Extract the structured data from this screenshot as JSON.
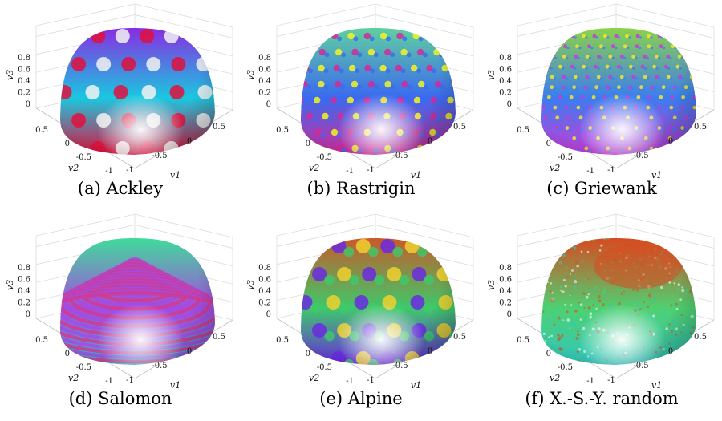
{
  "figure": {
    "panels": [
      {
        "letter": "(a)",
        "name": "Ackley",
        "caption": "(a) Ackley",
        "pattern": "blobs-large",
        "colors": {
          "top": "#8a2be2",
          "mid": "#19c8e0",
          "base": "#e0103c",
          "accent": "#f2f2f2"
        }
      },
      {
        "letter": "(b)",
        "name": "Rastrigin",
        "caption": "(b) Rastrigin",
        "pattern": "dots-medium",
        "colors": {
          "top": "#5fd0a0",
          "mid": "#3a6af0",
          "base": "#d22a9a",
          "accent": "#f5f520"
        }
      },
      {
        "letter": "(c)",
        "name": "Griewank",
        "caption": "(c) Griewank",
        "pattern": "dots-fine",
        "colors": {
          "top": "#8bd24a",
          "mid": "#3b7df0",
          "base": "#c83ad8",
          "accent": "#f5e52a"
        }
      },
      {
        "letter": "(d)",
        "name": "Salomon",
        "caption": "(d) Salomon",
        "pattern": "rings",
        "colors": {
          "top": "#3fdc9a",
          "mid": "#a54be0",
          "base": "#2bc0d8",
          "accent": "#d13a8e"
        }
      },
      {
        "letter": "(e)",
        "name": "Alpine",
        "caption": "(e) Alpine",
        "pattern": "blobs-mixed",
        "colors": {
          "top": "#c85a2a",
          "mid": "#3ec96a",
          "base": "#6a2ae0",
          "accent": "#f0d030"
        }
      },
      {
        "letter": "(f)",
        "name": "X.-S.-Y. random",
        "caption": "(f) X.-S.-Y. random",
        "pattern": "noise",
        "colors": {
          "top": "#d84a20",
          "mid": "#4ed070",
          "base": "#30c8c0",
          "accent": "#f0f0f0"
        }
      }
    ],
    "axes": {
      "zlabel": "v3",
      "xlabel": "v1",
      "ylabel": "v2",
      "zticks": [
        "0.8",
        "0.6",
        "0.4",
        "0.2",
        "0"
      ],
      "xticks": [
        "-1",
        "-0.5",
        "0",
        "0.5"
      ],
      "yticks": [
        "0.5",
        "0",
        "-0.5",
        "-1"
      ]
    }
  }
}
